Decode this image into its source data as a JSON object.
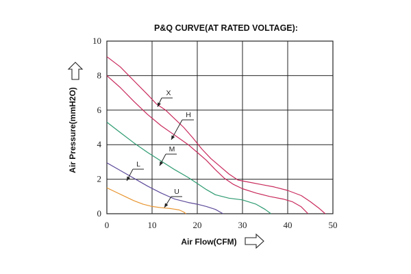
{
  "chart_data": {
    "type": "line",
    "title": "P&Q CURVE(AT RATED VOLTAGE):",
    "xlabel": "Air Flow(CFM)",
    "ylabel": "Air Pressure(mmH2O)",
    "xlim": [
      0,
      50
    ],
    "ylim": [
      0,
      10
    ],
    "x_ticks": [
      "0",
      "10",
      "20",
      "30",
      "40",
      "50"
    ],
    "y_ticks": [
      "0",
      "2",
      "4",
      "6",
      "8",
      "10"
    ],
    "grid": true,
    "series": [
      {
        "name": "X",
        "color": "#c8285a",
        "points": [
          [
            0,
            9.1
          ],
          [
            3,
            8.5
          ],
          [
            6,
            7.7
          ],
          [
            9,
            6.9
          ],
          [
            11,
            6.35
          ],
          [
            13,
            6.0
          ],
          [
            15,
            5.5
          ],
          [
            17,
            5.0
          ],
          [
            19,
            4.4
          ],
          [
            21,
            3.75
          ],
          [
            23,
            3.2
          ],
          [
            25,
            2.75
          ],
          [
            27,
            2.3
          ],
          [
            29,
            1.95
          ],
          [
            31,
            1.85
          ],
          [
            34,
            1.7
          ],
          [
            37,
            1.55
          ],
          [
            40,
            1.35
          ],
          [
            43,
            1.05
          ],
          [
            45,
            0.7
          ],
          [
            47,
            0.3
          ],
          [
            48.3,
            0
          ]
        ]
      },
      {
        "name": "H",
        "color": "#c8285a",
        "points": [
          [
            0,
            8.0
          ],
          [
            3,
            7.3
          ],
          [
            6,
            6.5
          ],
          [
            9,
            5.75
          ],
          [
            12,
            5.1
          ],
          [
            15,
            4.55
          ],
          [
            18,
            4.0
          ],
          [
            20,
            3.55
          ],
          [
            22,
            3.1
          ],
          [
            24,
            2.55
          ],
          [
            26,
            2.05
          ],
          [
            28,
            1.7
          ],
          [
            30,
            1.45
          ],
          [
            33,
            1.2
          ],
          [
            36,
            1.0
          ],
          [
            39,
            0.85
          ],
          [
            41,
            0.7
          ],
          [
            43,
            0.4
          ],
          [
            44.5,
            0
          ]
        ]
      },
      {
        "name": "M",
        "color": "#2c9a70",
        "points": [
          [
            0,
            5.3
          ],
          [
            3,
            4.7
          ],
          [
            6,
            4.1
          ],
          [
            9,
            3.55
          ],
          [
            12,
            3.05
          ],
          [
            15,
            2.55
          ],
          [
            18,
            2.1
          ],
          [
            20,
            1.75
          ],
          [
            22,
            1.4
          ],
          [
            24,
            1.1
          ],
          [
            27,
            0.9
          ],
          [
            30,
            0.8
          ],
          [
            33,
            0.55
          ],
          [
            35,
            0.25
          ],
          [
            36.3,
            0
          ]
        ]
      },
      {
        "name": "L",
        "color": "#5e4a9a",
        "points": [
          [
            0,
            2.95
          ],
          [
            3,
            2.5
          ],
          [
            6,
            2.05
          ],
          [
            9,
            1.6
          ],
          [
            12,
            1.2
          ],
          [
            15,
            0.85
          ],
          [
            18,
            0.65
          ],
          [
            20,
            0.55
          ],
          [
            22,
            0.42
          ],
          [
            24,
            0.25
          ],
          [
            25.7,
            0
          ]
        ]
      },
      {
        "name": "U",
        "color": "#e8942e",
        "points": [
          [
            0,
            1.5
          ],
          [
            2,
            1.25
          ],
          [
            4,
            1.0
          ],
          [
            6,
            0.75
          ],
          [
            8,
            0.55
          ],
          [
            10,
            0.42
          ],
          [
            12,
            0.35
          ],
          [
            14,
            0.3
          ],
          [
            16,
            0.22
          ],
          [
            17,
            0.1
          ],
          [
            17.5,
            0
          ]
        ]
      }
    ]
  },
  "icons": {
    "y_arrow": "up-arrow-outline-icon",
    "x_arrow": "right-arrow-outline-icon"
  }
}
